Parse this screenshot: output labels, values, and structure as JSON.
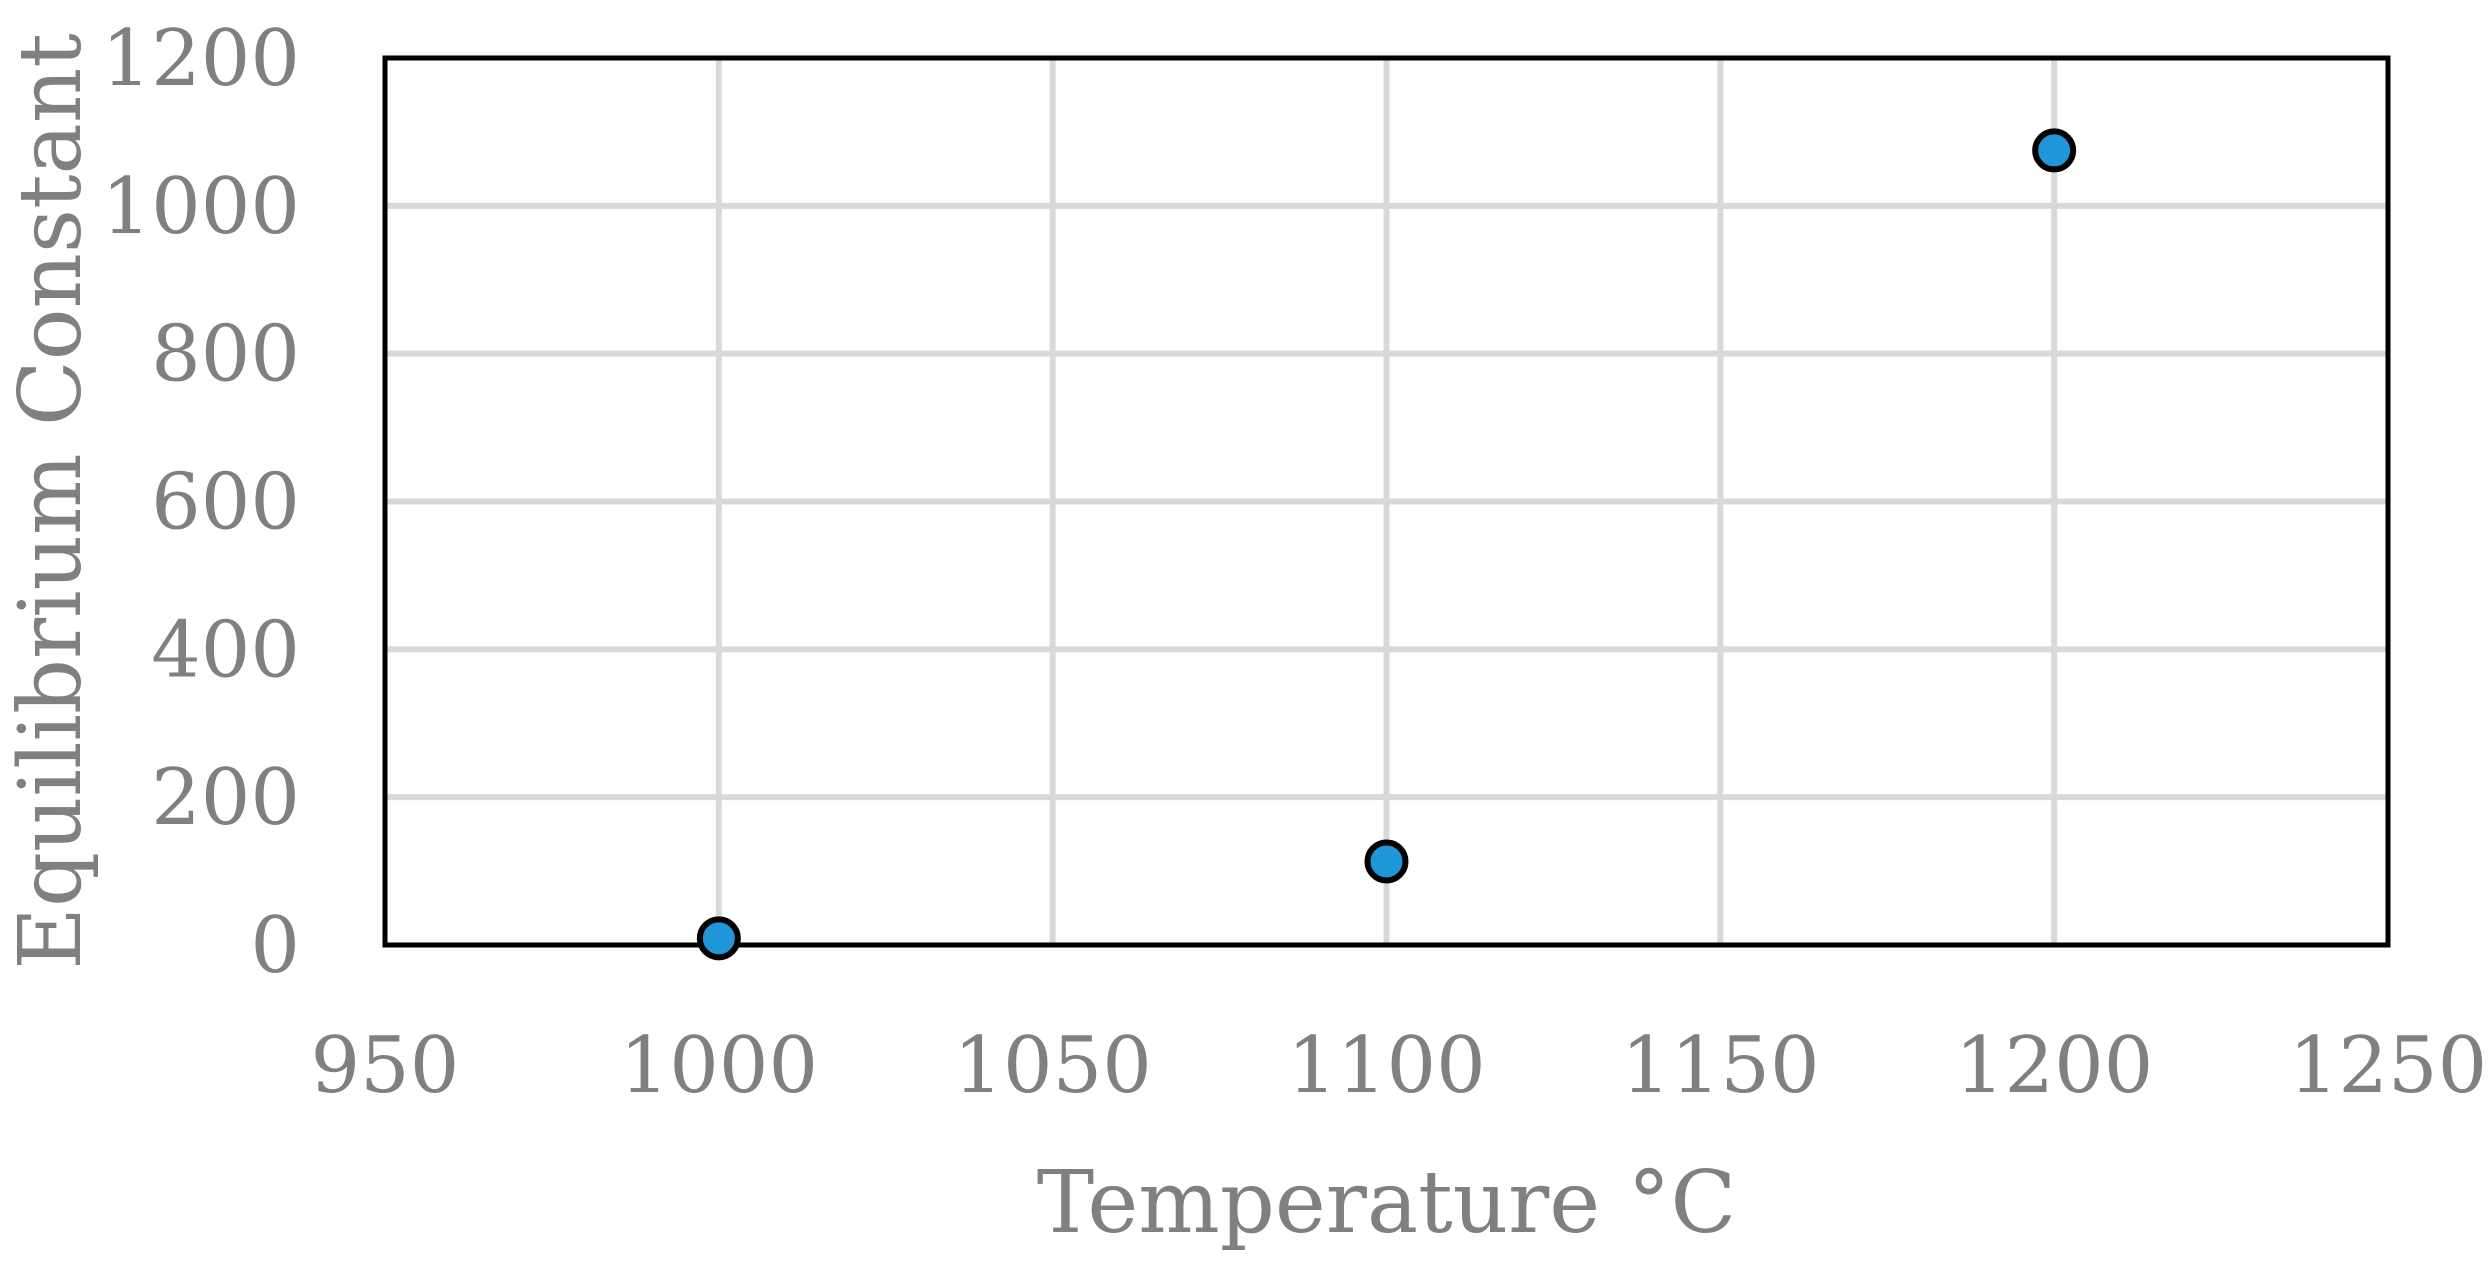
{
  "chart_data": {
    "type": "scatter",
    "title": "",
    "xlabel": "Temperature °C",
    "ylabel": "Equilibrium Constant",
    "xlim": [
      950,
      1250
    ],
    "ylim": [
      0,
      1200
    ],
    "x_ticks": [
      950,
      1000,
      1050,
      1100,
      1150,
      1200,
      1250
    ],
    "y_ticks": [
      0,
      200,
      400,
      600,
      800,
      1000,
      1200
    ],
    "grid": true,
    "legend": "none",
    "series": [
      {
        "x": [
          1000,
          1100,
          1200
        ],
        "y": [
          9,
          113,
          1075
        ],
        "color": "#1f96d8"
      }
    ]
  }
}
